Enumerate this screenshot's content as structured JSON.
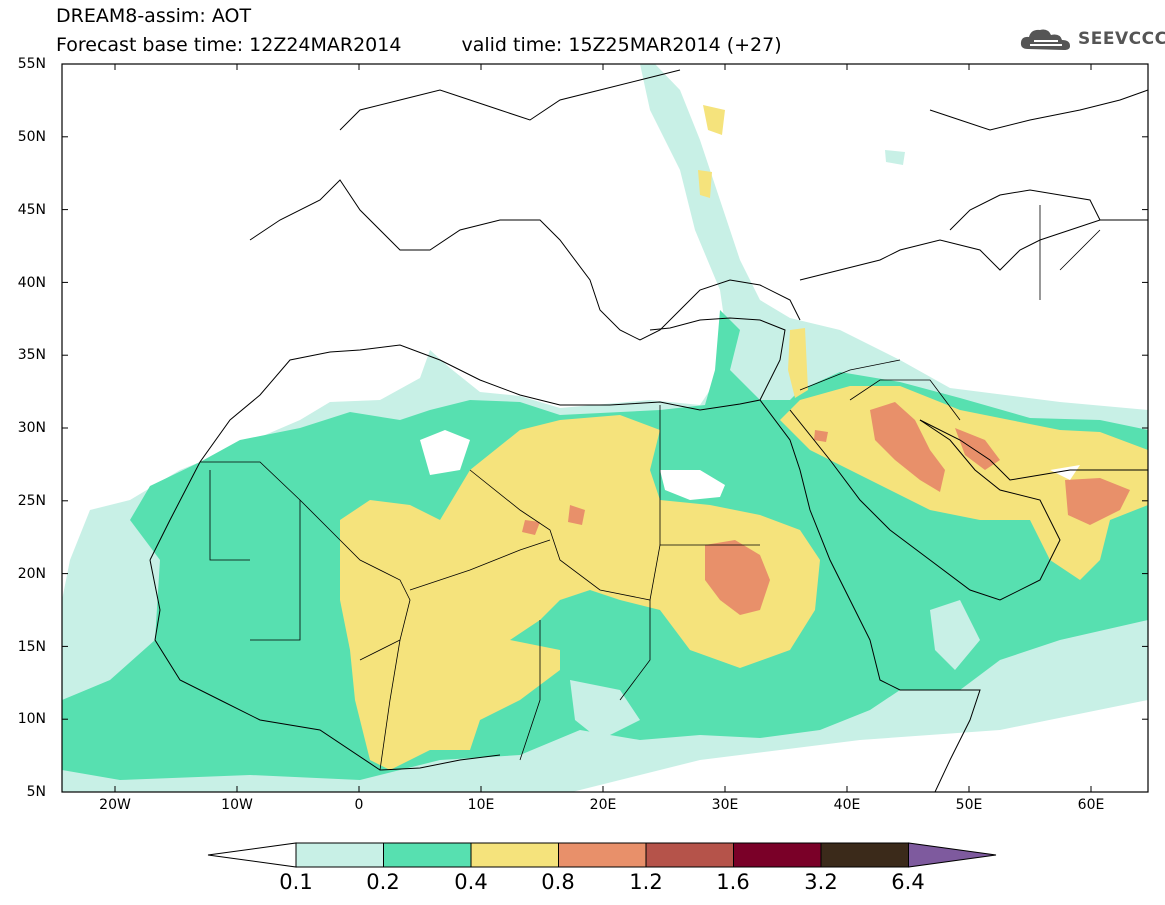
{
  "header": {
    "title_line1": "DREAM8-assim: AOT",
    "base_time": "Forecast base time: 12Z24MAR2014",
    "valid_time": "valid time: 15Z25MAR2014 (+27)"
  },
  "logo": {
    "text": "SEEVCCC"
  },
  "map": {
    "lat_labels": [
      "55N",
      "50N",
      "45N",
      "40N",
      "35N",
      "30N",
      "25N",
      "20N",
      "15N",
      "10N",
      "5N"
    ],
    "lon_labels": [
      "20W",
      "10W",
      "0",
      "10E",
      "20E",
      "30E",
      "40E",
      "50E",
      "60E"
    ]
  },
  "colorbar": {
    "labels": [
      "0.1",
      "0.2",
      "0.4",
      "0.8",
      "1.2",
      "1.6",
      "3.2",
      "6.4"
    ],
    "colors": [
      "#ffffff",
      "#c8f0e6",
      "#57e0b0",
      "#f5e37c",
      "#e8906a",
      "#b5534a",
      "#7a0028",
      "#3b2a1a",
      "#7e5a9e"
    ]
  }
}
